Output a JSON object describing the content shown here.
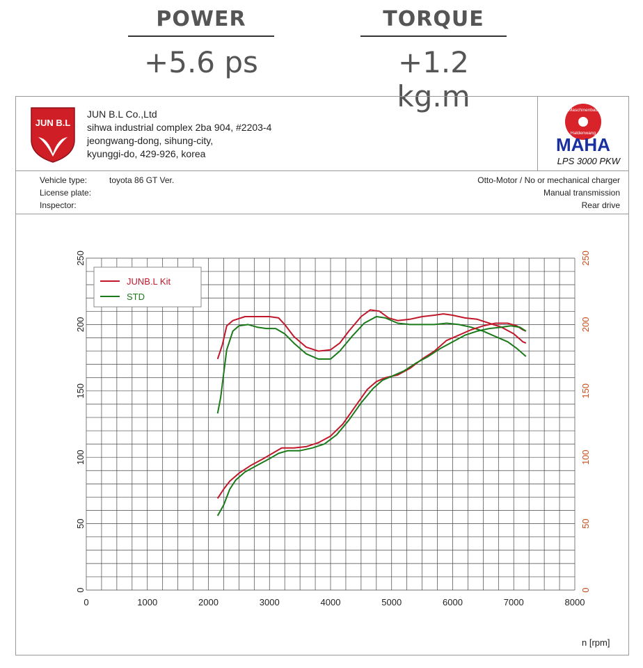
{
  "stats": {
    "power": {
      "label": "POWER",
      "value": "+5.6 ps"
    },
    "torque": {
      "label": "TORQUE",
      "value": "+1.2 kg.m"
    }
  },
  "company": {
    "logo_text": "JUN B.L",
    "lines": [
      "JUN B.L Co.,Ltd",
      "sihwa industrial complex 2ba 904, #2203-4",
      "jeongwang-dong, sihung-city,",
      "kyunggi-do, 429-926, korea"
    ]
  },
  "maha": {
    "top_text": "Maschinenbau",
    "bottom_text": "Haldenwang",
    "name": "MAHA",
    "model": "LPS 3000 PKW"
  },
  "vehicle": {
    "type_label": "Vehicle type:",
    "type_value": "toyota 86 GT Ver.",
    "plate_label": "License plate:",
    "inspector_label": "Inspector:",
    "right_lines": [
      "Otto-Motor / No or mechanical charger",
      "Manual transmission",
      "Rear drive"
    ]
  },
  "colors": {
    "kit": "#c0182a",
    "std": "#1a7a1a",
    "right_axis": "#c8501e",
    "grid": "#444444"
  },
  "chart_data": {
    "type": "line",
    "x_unit_label": "n [rpm]",
    "xlim": [
      0,
      8000
    ],
    "x_ticks": [
      0,
      1000,
      2000,
      3000,
      4000,
      5000,
      6000,
      7000,
      8000
    ],
    "ylim": [
      0,
      250
    ],
    "y_ticks": [
      0,
      50,
      100,
      150,
      200,
      250
    ],
    "right_ylim": [
      0,
      250
    ],
    "right_y_ticks": [
      0,
      50,
      100,
      150,
      200,
      250
    ],
    "grid": true,
    "legend_position": "top-left",
    "series": [
      {
        "name": "JUNB.L Kit",
        "group": "upper",
        "color_key": "kit",
        "points": [
          [
            2150,
            174
          ],
          [
            2230,
            185
          ],
          [
            2300,
            199
          ],
          [
            2400,
            203
          ],
          [
            2600,
            206
          ],
          [
            2800,
            206
          ],
          [
            3000,
            206
          ],
          [
            3150,
            205
          ],
          [
            3250,
            200
          ],
          [
            3400,
            191
          ],
          [
            3600,
            183
          ],
          [
            3800,
            180
          ],
          [
            4000,
            181
          ],
          [
            4150,
            186
          ],
          [
            4300,
            195
          ],
          [
            4500,
            206
          ],
          [
            4650,
            211
          ],
          [
            4800,
            210
          ],
          [
            4950,
            205
          ],
          [
            5100,
            203
          ],
          [
            5300,
            204
          ],
          [
            5500,
            206
          ],
          [
            5700,
            207
          ],
          [
            5850,
            208
          ],
          [
            6000,
            207
          ],
          [
            6200,
            205
          ],
          [
            6400,
            204
          ],
          [
            6600,
            201
          ],
          [
            6800,
            198
          ],
          [
            7000,
            193
          ],
          [
            7150,
            187
          ],
          [
            7200,
            186
          ]
        ]
      },
      {
        "name": "STD",
        "group": "upper",
        "color_key": "std",
        "points": [
          [
            2150,
            133
          ],
          [
            2200,
            145
          ],
          [
            2250,
            163
          ],
          [
            2300,
            181
          ],
          [
            2400,
            195
          ],
          [
            2500,
            199
          ],
          [
            2650,
            200
          ],
          [
            2800,
            198
          ],
          [
            2950,
            197
          ],
          [
            3100,
            197
          ],
          [
            3250,
            193
          ],
          [
            3400,
            186
          ],
          [
            3600,
            178
          ],
          [
            3800,
            174
          ],
          [
            4000,
            174
          ],
          [
            4150,
            180
          ],
          [
            4350,
            191
          ],
          [
            4550,
            201
          ],
          [
            4750,
            206
          ],
          [
            4900,
            205
          ],
          [
            5100,
            201
          ],
          [
            5300,
            200
          ],
          [
            5500,
            200
          ],
          [
            5700,
            200
          ],
          [
            5900,
            201
          ],
          [
            6100,
            200
          ],
          [
            6300,
            198
          ],
          [
            6500,
            195
          ],
          [
            6700,
            191
          ],
          [
            6900,
            187
          ],
          [
            7050,
            182
          ],
          [
            7200,
            176
          ]
        ]
      },
      {
        "name": "JUNB.L Kit",
        "group": "lower",
        "color_key": "kit",
        "points": [
          [
            2150,
            69
          ],
          [
            2250,
            76
          ],
          [
            2350,
            82
          ],
          [
            2500,
            88
          ],
          [
            2700,
            94
          ],
          [
            2900,
            99
          ],
          [
            3050,
            103
          ],
          [
            3200,
            107
          ],
          [
            3400,
            107
          ],
          [
            3600,
            108
          ],
          [
            3800,
            111
          ],
          [
            4000,
            116
          ],
          [
            4200,
            125
          ],
          [
            4400,
            138
          ],
          [
            4600,
            151
          ],
          [
            4750,
            157
          ],
          [
            4900,
            160
          ],
          [
            5100,
            162
          ],
          [
            5300,
            167
          ],
          [
            5500,
            174
          ],
          [
            5700,
            180
          ],
          [
            5900,
            188
          ],
          [
            6100,
            192
          ],
          [
            6300,
            196
          ],
          [
            6500,
            199
          ],
          [
            6700,
            201
          ],
          [
            6900,
            201
          ],
          [
            7050,
            199
          ],
          [
            7150,
            196
          ],
          [
            7200,
            195
          ]
        ]
      },
      {
        "name": "STD",
        "group": "lower",
        "color_key": "std",
        "points": [
          [
            2150,
            56
          ],
          [
            2250,
            64
          ],
          [
            2350,
            76
          ],
          [
            2450,
            83
          ],
          [
            2600,
            89
          ],
          [
            2800,
            94
          ],
          [
            3000,
            99
          ],
          [
            3150,
            103
          ],
          [
            3300,
            105
          ],
          [
            3500,
            105
          ],
          [
            3700,
            107
          ],
          [
            3900,
            110
          ],
          [
            4100,
            117
          ],
          [
            4300,
            128
          ],
          [
            4500,
            141
          ],
          [
            4700,
            152
          ],
          [
            4850,
            158
          ],
          [
            5000,
            161
          ],
          [
            5200,
            165
          ],
          [
            5400,
            171
          ],
          [
            5600,
            176
          ],
          [
            5800,
            182
          ],
          [
            6000,
            187
          ],
          [
            6200,
            192
          ],
          [
            6400,
            195
          ],
          [
            6600,
            197
          ],
          [
            6800,
            198
          ],
          [
            6950,
            199
          ],
          [
            7100,
            198
          ],
          [
            7200,
            195
          ]
        ]
      }
    ]
  }
}
